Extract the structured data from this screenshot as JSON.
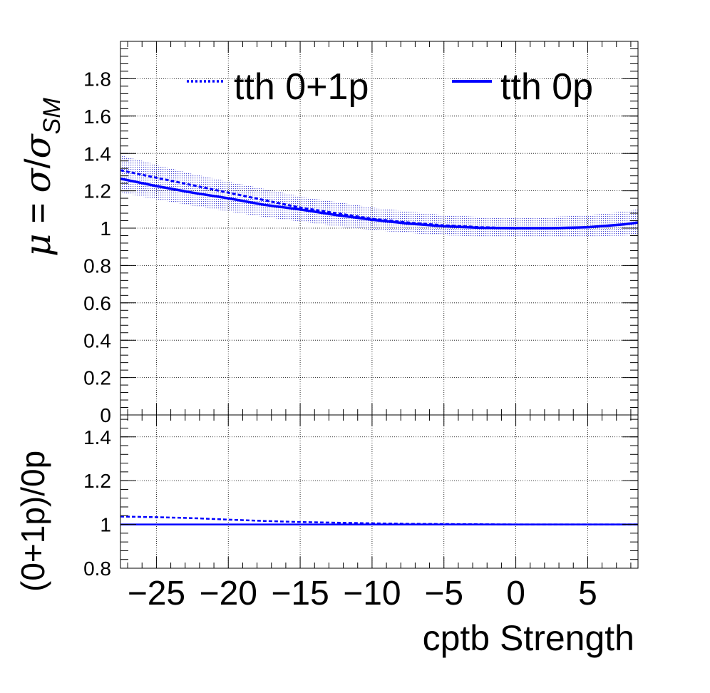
{
  "chart_data": [
    {
      "panel": "top",
      "type": "line",
      "title": "",
      "xlabel": "",
      "ylabel": "μ = σ/σ_SM",
      "xlim": [
        -27.5,
        8.5
      ],
      "ylim": [
        0,
        2.0
      ],
      "y_ticks": [
        0,
        0.2,
        0.4,
        0.6,
        0.8,
        1,
        1.2,
        1.4,
        1.6,
        1.8
      ],
      "y_tick_labels": [
        "0",
        "0.2",
        "0.4",
        "0.6",
        "0.8",
        "1",
        "1.2",
        "1.4",
        "1.6",
        "1.8"
      ],
      "grid": true,
      "legend_position": "top",
      "x": [
        -27.5,
        -25,
        -22.5,
        -20,
        -17.5,
        -15,
        -12.5,
        -10,
        -7.5,
        -5,
        -2.5,
        0,
        2.5,
        5,
        7.5,
        8.5
      ],
      "series": [
        {
          "name": "tth 0+1p",
          "style": "dashed",
          "color": "#0000ff",
          "values": [
            1.31,
            1.27,
            1.23,
            1.19,
            1.15,
            1.11,
            1.08,
            1.05,
            1.03,
            1.015,
            1.005,
            1.0,
            1.0,
            1.005,
            1.02,
            1.03
          ]
        },
        {
          "name": "tth 0p",
          "style": "solid",
          "color": "#0000ff",
          "values": [
            1.265,
            1.225,
            1.19,
            1.16,
            1.125,
            1.1,
            1.07,
            1.045,
            1.025,
            1.01,
            1.002,
            1.0,
            1.0,
            1.005,
            1.02,
            1.03
          ],
          "band_lower": [
            1.19,
            1.155,
            1.12,
            1.09,
            1.06,
            1.035,
            1.01,
            0.99,
            0.975,
            0.962,
            0.955,
            0.952,
            0.952,
            0.955,
            0.96,
            0.962
          ],
          "band_upper": [
            1.39,
            1.34,
            1.29,
            1.25,
            1.21,
            1.17,
            1.14,
            1.11,
            1.09,
            1.07,
            1.06,
            1.058,
            1.06,
            1.07,
            1.09,
            1.1
          ]
        }
      ]
    },
    {
      "panel": "bottom",
      "type": "line",
      "title": "",
      "xlabel": "cptb Strength",
      "ylabel": "(0+1p)/0p",
      "xlim": [
        -27.5,
        8.5
      ],
      "ylim": [
        0.8,
        1.5
      ],
      "x_ticks": [
        -25,
        -20,
        -15,
        -10,
        -5,
        0,
        5
      ],
      "x_tick_labels": [
        "−25",
        "−20",
        "−15",
        "−10",
        "−5",
        "0",
        "5"
      ],
      "y_ticks": [
        0.8,
        1,
        1.2,
        1.4
      ],
      "y_tick_labels": [
        "0.8",
        "1",
        "1.2",
        "1.4"
      ],
      "grid": true,
      "x": [
        -27.5,
        -25,
        -22.5,
        -20,
        -17.5,
        -15,
        -12.5,
        -10,
        -7.5,
        -5,
        -2.5,
        0,
        2.5,
        5,
        7.5,
        8.5
      ],
      "series": [
        {
          "style": "dashed",
          "color": "#0000ff",
          "values": [
            1.036,
            1.033,
            1.029,
            1.022,
            1.016,
            1.011,
            1.008,
            1.005,
            1.003,
            1.002,
            1.001,
            1.0,
            1.0,
            1.0,
            1.0,
            1.0
          ]
        },
        {
          "style": "solid",
          "color": "#0000ff",
          "values": [
            1.0,
            1.0,
            1.0,
            1.0,
            1.0,
            1.0,
            1.0,
            1.0,
            1.0,
            1.0,
            1.0,
            1.0,
            1.0,
            1.0,
            1.0,
            1.0
          ]
        }
      ]
    }
  ]
}
